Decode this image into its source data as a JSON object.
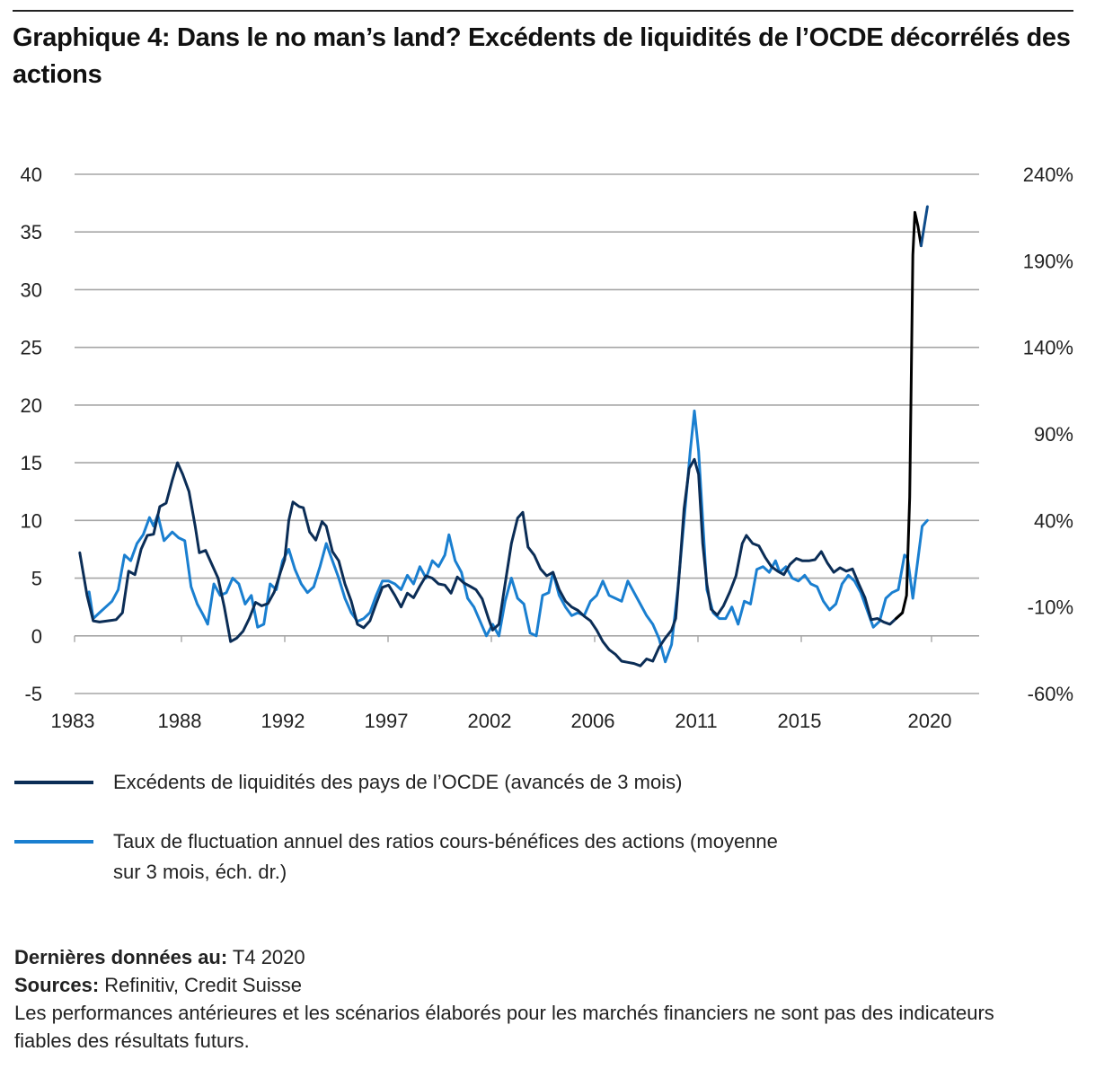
{
  "title": "Graphique 4: Dans le no man’s land? Excédents de liquidités de l’OCDE décorrélés des actions",
  "legend": [
    {
      "label": "Excédents de liquidités des pays de l’OCDE (avancés de 3 mois)",
      "color": "#0b2d56"
    },
    {
      "label": "Taux de fluctuation annuel des ratios cours-bénéfices des actions (moyenne sur 3 mois, éch. dr.)",
      "color": "#1a7fd0"
    }
  ],
  "footer": {
    "latest_label": "Dernières données au:",
    "latest_value": "T4 2020",
    "sources_label": "Sources:",
    "sources_value": "Refinitiv, Credit Suisse",
    "disclaimer": "Les performances antérieures et les scénarios élaborés pour les marchés financiers ne sont pas des indicateurs fiables des résultats futurs."
  },
  "chart_data": {
    "type": "line",
    "title": "Graphique 4: Dans le no man’s land? Excédents de liquidités de l’OCDE décorrélés des actions",
    "xlabel": "",
    "ylabel_left": "",
    "ylabel_right": "",
    "x_tick_labels": [
      "1983",
      "1988",
      "1992",
      "1997",
      "2002",
      "2006",
      "2011",
      "2015",
      "2020"
    ],
    "x_range": [
      1983,
      2021.5
    ],
    "y_left_ticks": [
      "40",
      "35",
      "30",
      "25",
      "20",
      "15",
      "10",
      "5",
      "0",
      "-5"
    ],
    "y_left_range": [
      -5,
      40
    ],
    "y_right_ticks": [
      "240%",
      "190%",
      "140%",
      "90%",
      "40%",
      "-10%",
      "-60%"
    ],
    "y_right_range": [
      -60,
      240
    ],
    "grid": true,
    "legend_position": "bottom",
    "series": [
      {
        "name": "Excédents de liquidités des pays de l’OCDE (avancés de 3 mois)",
        "axis": "left",
        "color": "#0b2d56",
        "highlight_color": "#000000",
        "points": [
          [
            1983.25,
            7.2
          ],
          [
            1983.6,
            3.5
          ],
          [
            1983.9,
            1.3
          ],
          [
            1984.2,
            1.2
          ],
          [
            1984.6,
            1.3
          ],
          [
            1985.0,
            1.4
          ],
          [
            1985.3,
            2.0
          ],
          [
            1985.6,
            5.6
          ],
          [
            1985.9,
            5.3
          ],
          [
            1986.2,
            7.5
          ],
          [
            1986.5,
            8.7
          ],
          [
            1986.8,
            8.8
          ],
          [
            1987.1,
            11.2
          ],
          [
            1987.4,
            11.5
          ],
          [
            1987.7,
            13.5
          ],
          [
            1987.95,
            15.0
          ],
          [
            1988.2,
            14.0
          ],
          [
            1988.5,
            12.5
          ],
          [
            1988.8,
            9.5
          ],
          [
            1989.0,
            7.2
          ],
          [
            1989.3,
            7.4
          ],
          [
            1989.6,
            6.2
          ],
          [
            1989.9,
            5.0
          ],
          [
            1990.2,
            2.5
          ],
          [
            1990.5,
            -0.5
          ],
          [
            1990.8,
            -0.2
          ],
          [
            1991.1,
            0.4
          ],
          [
            1991.4,
            1.5
          ],
          [
            1991.7,
            2.9
          ],
          [
            1992.0,
            2.6
          ],
          [
            1992.3,
            2.8
          ],
          [
            1992.6,
            3.8
          ],
          [
            1992.9,
            5.5
          ],
          [
            1993.1,
            6.6
          ],
          [
            1993.3,
            10.0
          ],
          [
            1993.5,
            11.6
          ],
          [
            1993.8,
            11.2
          ],
          [
            1994.0,
            11.1
          ],
          [
            1994.3,
            9.0
          ],
          [
            1994.6,
            8.3
          ],
          [
            1994.9,
            9.9
          ],
          [
            1995.1,
            9.5
          ],
          [
            1995.4,
            7.3
          ],
          [
            1995.7,
            6.5
          ],
          [
            1996.0,
            4.5
          ],
          [
            1996.3,
            3.0
          ],
          [
            1996.6,
            1.0
          ],
          [
            1996.9,
            0.7
          ],
          [
            1997.2,
            1.3
          ],
          [
            1997.5,
            2.8
          ],
          [
            1997.8,
            4.2
          ],
          [
            1998.1,
            4.4
          ],
          [
            1998.4,
            3.5
          ],
          [
            1998.7,
            2.5
          ],
          [
            1999.0,
            3.7
          ],
          [
            1999.3,
            3.3
          ],
          [
            1999.6,
            4.3
          ],
          [
            1999.9,
            5.2
          ],
          [
            2000.2,
            5.0
          ],
          [
            2000.5,
            4.5
          ],
          [
            2000.8,
            4.4
          ],
          [
            2001.1,
            3.7
          ],
          [
            2001.4,
            5.1
          ],
          [
            2001.7,
            4.6
          ],
          [
            2002.0,
            4.3
          ],
          [
            2002.3,
            4.0
          ],
          [
            2002.6,
            3.2
          ],
          [
            2002.9,
            1.5
          ],
          [
            2003.1,
            0.5
          ],
          [
            2003.4,
            1.0
          ],
          [
            2003.7,
            4.5
          ],
          [
            2004.0,
            8.0
          ],
          [
            2004.3,
            10.2
          ],
          [
            2004.55,
            10.7
          ],
          [
            2004.8,
            7.7
          ],
          [
            2005.1,
            7.0
          ],
          [
            2005.4,
            5.8
          ],
          [
            2005.7,
            5.2
          ],
          [
            2006.0,
            5.5
          ],
          [
            2006.3,
            4.0
          ],
          [
            2006.6,
            3.0
          ],
          [
            2006.9,
            2.5
          ],
          [
            2007.2,
            2.2
          ],
          [
            2007.5,
            1.7
          ],
          [
            2007.8,
            1.3
          ],
          [
            2008.1,
            0.5
          ],
          [
            2008.4,
            -0.5
          ],
          [
            2008.7,
            -1.2
          ],
          [
            2009.0,
            -1.6
          ],
          [
            2009.3,
            -2.2
          ],
          [
            2009.6,
            -2.3
          ],
          [
            2009.9,
            -2.4
          ],
          [
            2010.2,
            -2.6
          ],
          [
            2010.5,
            -2.0
          ],
          [
            2010.8,
            -2.2
          ],
          [
            2011.1,
            -1.0
          ],
          [
            2011.4,
            -0.2
          ],
          [
            2011.7,
            0.5
          ],
          [
            2011.9,
            1.5
          ],
          [
            2012.1,
            6.0
          ],
          [
            2012.3,
            11.0
          ],
          [
            2012.55,
            14.5
          ],
          [
            2012.8,
            15.3
          ],
          [
            2013.0,
            14.0
          ],
          [
            2013.2,
            8.0
          ],
          [
            2013.4,
            4.5
          ],
          [
            2013.6,
            2.3
          ],
          [
            2013.9,
            1.8
          ],
          [
            2014.2,
            2.6
          ],
          [
            2014.5,
            3.8
          ],
          [
            2014.8,
            5.2
          ],
          [
            2015.1,
            8.0
          ],
          [
            2015.3,
            8.7
          ],
          [
            2015.6,
            8.0
          ],
          [
            2015.9,
            7.8
          ],
          [
            2016.2,
            6.8
          ],
          [
            2016.5,
            6.0
          ],
          [
            2016.8,
            5.6
          ],
          [
            2017.1,
            5.3
          ],
          [
            2017.4,
            6.2
          ],
          [
            2017.7,
            6.7
          ],
          [
            2018.0,
            6.5
          ],
          [
            2018.3,
            6.5
          ],
          [
            2018.6,
            6.6
          ],
          [
            2018.9,
            7.3
          ],
          [
            2019.2,
            6.3
          ],
          [
            2019.5,
            5.5
          ],
          [
            2019.8,
            5.9
          ],
          [
            2020.1,
            5.6
          ],
          [
            2020.4,
            5.8
          ],
          [
            2020.7,
            4.5
          ],
          [
            2021.0,
            3.3
          ],
          [
            2021.3,
            1.4
          ],
          [
            2021.6,
            1.5
          ],
          [
            2021.9,
            1.2
          ],
          [
            2022.2,
            1.0
          ],
          [
            2022.5,
            1.5
          ],
          [
            2022.8,
            2.0
          ],
          [
            2023.0,
            3.5
          ],
          [
            2023.15,
            12.0
          ],
          [
            2023.3,
            33.0
          ],
          [
            2023.4,
            36.7
          ],
          [
            2023.55,
            35.5
          ],
          [
            2023.7,
            33.8
          ],
          [
            2023.85,
            35.5
          ],
          [
            2024.0,
            37.2
          ]
        ]
      },
      {
        "name": "Taux de fluctuation annuel des ratios cours-bénéfices des actions (moyenne sur 3 mois, éch. dr.)",
        "axis": "right",
        "color": "#1a7fd0",
        "points": [
          [
            1983.7,
            -1.3
          ],
          [
            1983.9,
            -16.7
          ],
          [
            1984.2,
            -13.3
          ],
          [
            1984.5,
            -10.0
          ],
          [
            1984.8,
            -6.7
          ],
          [
            1985.1,
            0.0
          ],
          [
            1985.4,
            20.0
          ],
          [
            1985.7,
            16.7
          ],
          [
            1986.0,
            26.7
          ],
          [
            1986.3,
            31.7
          ],
          [
            1986.6,
            41.7
          ],
          [
            1986.8,
            36.7
          ],
          [
            1987.0,
            43.3
          ],
          [
            1987.3,
            28.3
          ],
          [
            1987.7,
            33.3
          ],
          [
            1988.0,
            30.0
          ],
          [
            1988.3,
            28.3
          ],
          [
            1988.6,
            1.7
          ],
          [
            1988.9,
            -8.3
          ],
          [
            1989.2,
            -15.0
          ],
          [
            1989.4,
            -20.0
          ],
          [
            1989.7,
            3.3
          ],
          [
            1990.0,
            -3.3
          ],
          [
            1990.3,
            -1.7
          ],
          [
            1990.6,
            6.7
          ],
          [
            1990.9,
            3.3
          ],
          [
            1991.2,
            -8.3
          ],
          [
            1991.5,
            -3.3
          ],
          [
            1991.8,
            -21.7
          ],
          [
            1992.1,
            -20.0
          ],
          [
            1992.4,
            3.3
          ],
          [
            1992.7,
            0.0
          ],
          [
            1993.0,
            16.7
          ],
          [
            1993.3,
            23.3
          ],
          [
            1993.6,
            11.7
          ],
          [
            1993.9,
            3.3
          ],
          [
            1994.2,
            -1.7
          ],
          [
            1994.5,
            1.7
          ],
          [
            1994.8,
            13.3
          ],
          [
            1995.1,
            26.7
          ],
          [
            1995.4,
            16.7
          ],
          [
            1995.7,
            6.7
          ],
          [
            1996.0,
            -5.0
          ],
          [
            1996.3,
            -13.3
          ],
          [
            1996.6,
            -18.3
          ],
          [
            1996.9,
            -16.7
          ],
          [
            1997.2,
            -13.3
          ],
          [
            1997.5,
            -3.3
          ],
          [
            1997.8,
            5.0
          ],
          [
            1998.1,
            5.0
          ],
          [
            1998.4,
            3.3
          ],
          [
            1998.7,
            0.0
          ],
          [
            1999.0,
            8.3
          ],
          [
            1999.3,
            3.3
          ],
          [
            1999.6,
            13.3
          ],
          [
            1999.9,
            6.7
          ],
          [
            2000.2,
            16.7
          ],
          [
            2000.5,
            13.3
          ],
          [
            2000.8,
            20.0
          ],
          [
            2001.0,
            31.7
          ],
          [
            2001.3,
            16.7
          ],
          [
            2001.6,
            10.0
          ],
          [
            2001.9,
            -5.0
          ],
          [
            2002.2,
            -10.0
          ],
          [
            2002.5,
            -18.3
          ],
          [
            2002.8,
            -26.7
          ],
          [
            2003.1,
            -20.0
          ],
          [
            2003.4,
            -26.7
          ],
          [
            2003.7,
            -6.7
          ],
          [
            2004.0,
            6.7
          ],
          [
            2004.3,
            -5.0
          ],
          [
            2004.6,
            -8.3
          ],
          [
            2004.9,
            -25.0
          ],
          [
            2005.2,
            -26.7
          ],
          [
            2005.5,
            -3.3
          ],
          [
            2005.8,
            -1.7
          ],
          [
            2006.0,
            10.0
          ],
          [
            2006.3,
            -3.3
          ],
          [
            2006.6,
            -10.0
          ],
          [
            2006.9,
            -15.0
          ],
          [
            2007.2,
            -13.3
          ],
          [
            2007.5,
            -15.0
          ],
          [
            2007.8,
            -6.7
          ],
          [
            2008.1,
            -3.3
          ],
          [
            2008.4,
            5.0
          ],
          [
            2008.7,
            -3.3
          ],
          [
            2009.0,
            -5.0
          ],
          [
            2009.3,
            -6.7
          ],
          [
            2009.6,
            5.0
          ],
          [
            2009.9,
            -1.7
          ],
          [
            2010.2,
            -8.3
          ],
          [
            2010.5,
            -15.0
          ],
          [
            2010.8,
            -20.0
          ],
          [
            2011.1,
            -28.3
          ],
          [
            2011.4,
            -41.7
          ],
          [
            2011.7,
            -31.7
          ],
          [
            2012.0,
            0.0
          ],
          [
            2012.3,
            40.0
          ],
          [
            2012.6,
            80.0
          ],
          [
            2012.8,
            103.3
          ],
          [
            2013.0,
            80.0
          ],
          [
            2013.2,
            40.0
          ],
          [
            2013.4,
            0.0
          ],
          [
            2013.7,
            -13.3
          ],
          [
            2014.0,
            -16.7
          ],
          [
            2014.3,
            -16.7
          ],
          [
            2014.6,
            -10.0
          ],
          [
            2014.9,
            -20.0
          ],
          [
            2015.2,
            -6.7
          ],
          [
            2015.5,
            -8.3
          ],
          [
            2015.8,
            11.7
          ],
          [
            2016.1,
            13.3
          ],
          [
            2016.4,
            10.0
          ],
          [
            2016.7,
            16.7
          ],
          [
            2016.9,
            10.0
          ],
          [
            2017.2,
            13.3
          ],
          [
            2017.5,
            6.7
          ],
          [
            2017.8,
            5.0
          ],
          [
            2018.1,
            8.3
          ],
          [
            2018.4,
            3.3
          ],
          [
            2018.7,
            1.7
          ],
          [
            2019.0,
            -6.7
          ],
          [
            2019.3,
            -11.7
          ],
          [
            2019.6,
            -8.3
          ],
          [
            2019.9,
            3.3
          ],
          [
            2020.2,
            8.3
          ],
          [
            2020.5,
            5.0
          ],
          [
            2020.8,
            -1.7
          ],
          [
            2021.1,
            -11.7
          ],
          [
            2021.4,
            -21.7
          ],
          [
            2021.7,
            -18.3
          ],
          [
            2022.0,
            -5.0
          ],
          [
            2022.3,
            -1.7
          ],
          [
            2022.6,
            0.0
          ],
          [
            2022.9,
            20.0
          ],
          [
            2023.05,
            18.3
          ],
          [
            2023.3,
            -5.0
          ],
          [
            2023.5,
            13.3
          ],
          [
            2023.75,
            36.7
          ],
          [
            2024.0,
            40.0
          ]
        ]
      }
    ]
  }
}
